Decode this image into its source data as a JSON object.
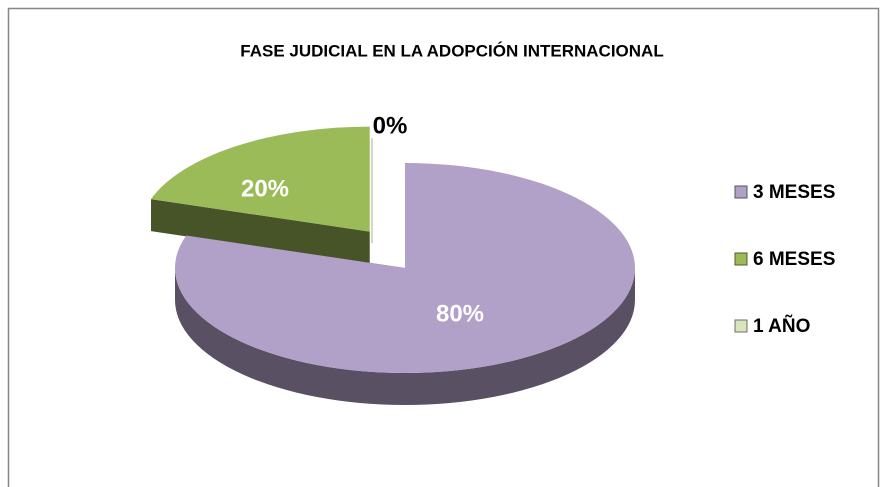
{
  "chart_data": {
    "type": "pie",
    "title": "FASE JUDICIAL EN LA ADOPCIÓN INTERNACIONAL",
    "categories": [
      "3 MESES",
      "6 MESES",
      "1 AÑO"
    ],
    "values": [
      80,
      20,
      0
    ],
    "value_labels": [
      "80%",
      "20%",
      "0%"
    ],
    "colors": [
      "#b1a0c7",
      "#9bbb59",
      "#d7e4bd"
    ],
    "legend": "right"
  }
}
